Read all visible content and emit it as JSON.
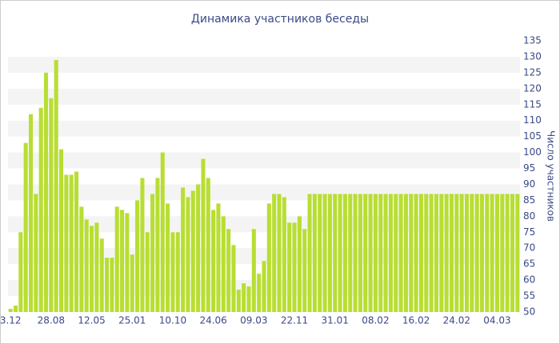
{
  "chart_data": {
    "type": "bar",
    "title": "Динамика участников беседы",
    "y_label": "Число участников",
    "categories": [
      "3.12",
      null,
      null,
      null,
      null,
      null,
      null,
      null,
      "28.08",
      null,
      null,
      null,
      null,
      null,
      null,
      null,
      "12.05",
      null,
      null,
      null,
      null,
      null,
      null,
      null,
      "25.01",
      null,
      null,
      null,
      null,
      null,
      null,
      null,
      "10.10",
      null,
      null,
      null,
      null,
      null,
      null,
      null,
      "24.06",
      null,
      null,
      null,
      null,
      null,
      null,
      null,
      "09.03",
      null,
      null,
      null,
      null,
      null,
      null,
      null,
      "22.11",
      null,
      null,
      null,
      null,
      null,
      null,
      null,
      "31.01",
      null,
      null,
      null,
      null,
      null,
      null,
      null,
      "08.02",
      null,
      null,
      null,
      null,
      null,
      null,
      null,
      "16.02",
      null,
      null,
      null,
      null,
      null,
      null,
      null,
      "24.02",
      null,
      null,
      null,
      null,
      null,
      null,
      null,
      "04.03",
      null,
      null,
      null,
      null
    ],
    "values": [
      51,
      52,
      75,
      103,
      112,
      87,
      114,
      125,
      117,
      129,
      101,
      93,
      93,
      94,
      83,
      79,
      77,
      78,
      73,
      67,
      67,
      83,
      82,
      81,
      68,
      85,
      92,
      75,
      87,
      92,
      100,
      84,
      75,
      75,
      89,
      86,
      88,
      90,
      98,
      92,
      82,
      84,
      80,
      76,
      71,
      57,
      59,
      58,
      76,
      62,
      66,
      84,
      87,
      87,
      86,
      78,
      78,
      80,
      76,
      87,
      87,
      87,
      87,
      87,
      87,
      87,
      87,
      87,
      87,
      87,
      87,
      87,
      87,
      87,
      87,
      87,
      87,
      87,
      87,
      87,
      87,
      87,
      87,
      87,
      87,
      87,
      87,
      87,
      87,
      87,
      87,
      87,
      87,
      87,
      87,
      87,
      87,
      87,
      87,
      87,
      87
    ],
    "color": "#b8de33",
    "ylim": [
      50,
      135
    ],
    "yticks": [
      50,
      55,
      60,
      65,
      70,
      75,
      80,
      85,
      90,
      95,
      100,
      105,
      110,
      115,
      120,
      125,
      130,
      135
    ],
    "y_axis_side": "right",
    "banded_grid": true
  }
}
